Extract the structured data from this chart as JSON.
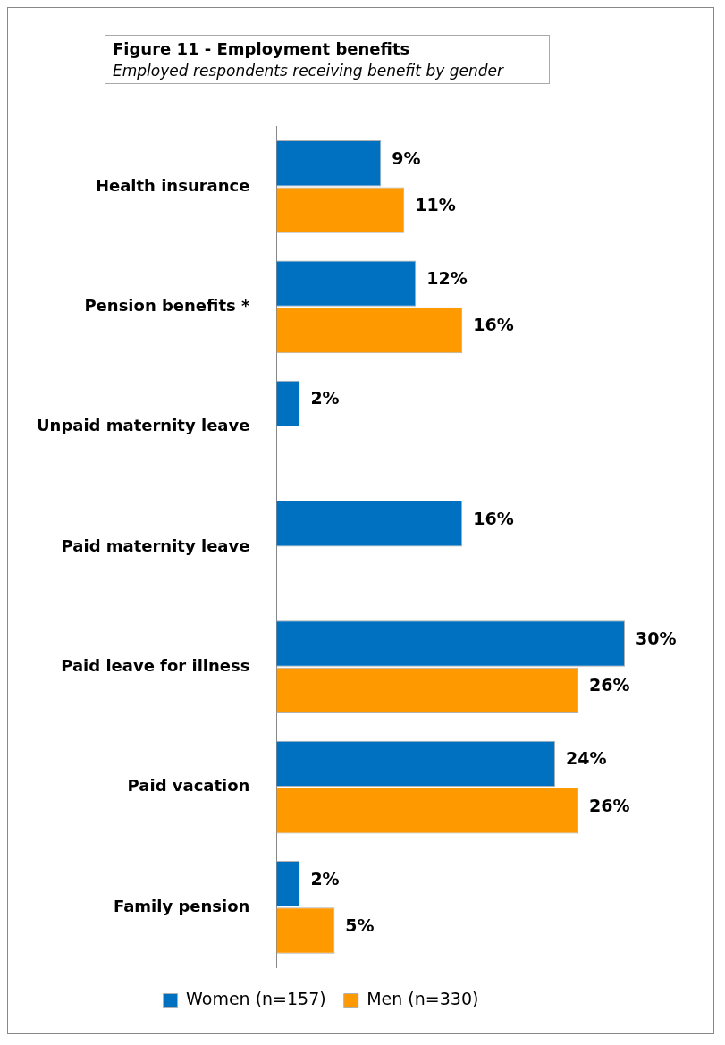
{
  "chart_data": {
    "type": "bar",
    "orientation": "horizontal",
    "title": "Figure 11 - Employment benefits",
    "subtitle": "Employed respondents receiving benefit by gender",
    "categories": [
      "Health insurance",
      "Pension benefits *",
      "Unpaid maternity leave",
      "Paid maternity leave",
      "Paid leave for illness",
      "Paid vacation",
      "Family pension"
    ],
    "series": [
      {
        "name": "Women (n=157)",
        "color": "#0070c0",
        "values": [
          9,
          12,
          2,
          16,
          30,
          24,
          2
        ],
        "value_labels": [
          "9%",
          "12%",
          "2%",
          "16%",
          "30%",
          "24%",
          "2%"
        ]
      },
      {
        "name": "Men (n=330)",
        "color": "#ff9900",
        "values": [
          11,
          16,
          null,
          null,
          26,
          26,
          5
        ],
        "value_labels": [
          "11%",
          "16%",
          null,
          null,
          "26%",
          "26%",
          "5%"
        ]
      }
    ],
    "relative": false,
    "grid": false,
    "legend": "bottom"
  }
}
